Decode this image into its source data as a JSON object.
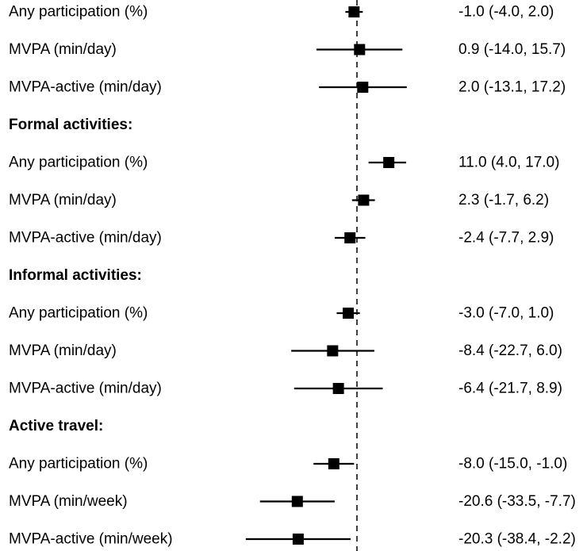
{
  "chart_data": {
    "type": "forest",
    "reference_value": 0,
    "x_axis_visible": false,
    "rows": [
      {
        "kind": "estimate",
        "label": "Any participation (%)",
        "estimate": -1.0,
        "lower": -4.0,
        "upper": 2.0,
        "ci_text": "-1.0 (-4.0, 2.0)"
      },
      {
        "kind": "estimate",
        "label": "MVPA (min/day)",
        "estimate": 0.9,
        "lower": -14.0,
        "upper": 15.7,
        "ci_text": "0.9 (-14.0, 15.7)"
      },
      {
        "kind": "estimate",
        "label": "MVPA-active (min/day)",
        "estimate": 2.0,
        "lower": -13.1,
        "upper": 17.2,
        "ci_text": "2.0 (-13.1, 17.2)"
      },
      {
        "kind": "header",
        "label": "Formal activities:"
      },
      {
        "kind": "estimate",
        "label": "Any participation (%)",
        "estimate": 11.0,
        "lower": 4.0,
        "upper": 17.0,
        "ci_text": "11.0 (4.0, 17.0)"
      },
      {
        "kind": "estimate",
        "label": "MVPA (min/day)",
        "estimate": 2.3,
        "lower": -1.7,
        "upper": 6.2,
        "ci_text": "2.3 (-1.7, 6.2)"
      },
      {
        "kind": "estimate",
        "label": "MVPA-active (min/day)",
        "estimate": -2.4,
        "lower": -7.7,
        "upper": 2.9,
        "ci_text": "-2.4 (-7.7, 2.9)"
      },
      {
        "kind": "header",
        "label": "Informal activities:"
      },
      {
        "kind": "estimate",
        "label": "Any participation (%)",
        "estimate": -3.0,
        "lower": -7.0,
        "upper": 1.0,
        "ci_text": "-3.0 (-7.0, 1.0)"
      },
      {
        "kind": "estimate",
        "label": "MVPA (min/day)",
        "estimate": -8.4,
        "lower": -22.7,
        "upper": 6.0,
        "ci_text": "-8.4 (-22.7, 6.0)"
      },
      {
        "kind": "estimate",
        "label": "MVPA-active (min/day)",
        "estimate": -6.4,
        "lower": -21.7,
        "upper": 8.9,
        "ci_text": "-6.4 (-21.7, 8.9)"
      },
      {
        "kind": "header",
        "label": "Active travel:"
      },
      {
        "kind": "estimate",
        "label": "Any participation (%)",
        "estimate": -8.0,
        "lower": -15.0,
        "upper": -1.0,
        "ci_text": "-8.0 (-15.0, -1.0)"
      },
      {
        "kind": "estimate",
        "label": "MVPA (min/week)",
        "estimate": -20.6,
        "lower": -33.5,
        "upper": -7.7,
        "ci_text": "-20.6 (-33.5, -7.7)"
      },
      {
        "kind": "estimate",
        "label": "MVPA-active (min/week)",
        "estimate": -20.3,
        "lower": -38.4,
        "upper": -2.2,
        "ci_text": "-20.3 (-38.4, -2.2)"
      }
    ]
  }
}
